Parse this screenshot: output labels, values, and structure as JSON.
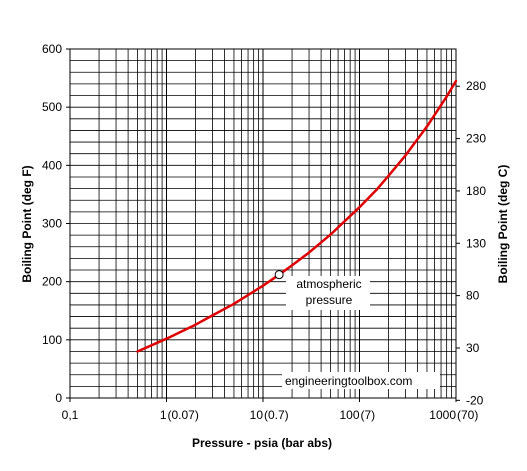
{
  "chart_data": {
    "type": "line",
    "xlabel": "Pressure - psia (bar abs)",
    "ylabel_left": "Boiling Point (deg F)",
    "ylabel_right": "Boiling Point (deg C)",
    "x_scale": "log",
    "xlim": [
      0.1,
      1000
    ],
    "ylim": [
      0,
      600
    ],
    "y2lim_degC": [
      -20,
      320
    ],
    "grid": true,
    "x_ticks": [
      {
        "value": 0.1,
        "label": "0,1",
        "sub": ""
      },
      {
        "value": 1,
        "label": "1",
        "sub": "(0.07)"
      },
      {
        "value": 10,
        "label": "10",
        "sub": "(0.7)"
      },
      {
        "value": 100,
        "label": "100",
        "sub": "(7)"
      },
      {
        "value": 1000,
        "label": "1000",
        "sub": "(70)"
      }
    ],
    "y_ticks": [
      "0",
      "100",
      "200",
      "300",
      "400",
      "500",
      "600"
    ],
    "y2_ticks": [
      "-20",
      "30",
      "80",
      "130",
      "180",
      "230",
      "280"
    ],
    "series": [
      {
        "color": "#e00000",
        "x": [
          0.5,
          1,
          2,
          3,
          5,
          10,
          14.7,
          20,
          30,
          50,
          100,
          150,
          200,
          300,
          500,
          800,
          1000
        ],
        "y": [
          80,
          102,
          126,
          142,
          162,
          193,
          212,
          228,
          250,
          281,
          328,
          358,
          382,
          417,
          467,
          518,
          545
        ]
      }
    ],
    "marker": {
      "x": 14.7,
      "y": 212,
      "style": "open-circle"
    },
    "annotations": {
      "atmospheric_line1": "atmospheric",
      "atmospheric_line2": "pressure",
      "watermark": "engineeringtoolbox.com"
    }
  }
}
